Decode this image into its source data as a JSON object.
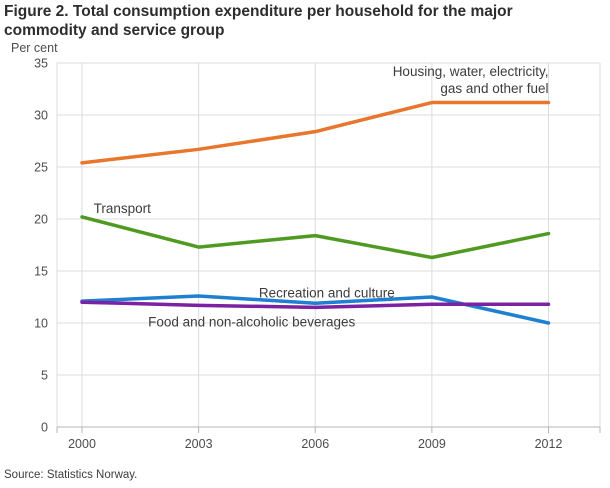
{
  "page": {
    "title": "Figure 2. Total consumption expenditure per household for the major commodity and service group",
    "source": "Source: Statistics Norway."
  },
  "chart_data": {
    "type": "line",
    "title": "Figure 2. Total consumption expenditure per household for the major commodity and service group",
    "ylabel": "Per cent",
    "xlabel": "",
    "x": [
      2000,
      2003,
      2006,
      2009,
      2012
    ],
    "xticklabels": [
      "2000",
      "2003",
      "2006",
      "2009",
      "2012"
    ],
    "ylim": [
      0,
      35
    ],
    "yticks": [
      0,
      5,
      10,
      15,
      20,
      25,
      30,
      35
    ],
    "grid": true,
    "legend_position": "inline-annotations",
    "series": [
      {
        "name": "Housing, water, electricity, gas and other fuel",
        "color": "#e8762c",
        "values": [
          25.4,
          26.7,
          28.4,
          31.2,
          31.2
        ]
      },
      {
        "name": "Transport",
        "color": "#4f9a21",
        "values": [
          20.2,
          17.3,
          18.4,
          16.3,
          18.6
        ]
      },
      {
        "name": "Recreation and culture",
        "color": "#1f7fd1",
        "values": [
          12.1,
          12.6,
          11.9,
          12.5,
          10.0
        ]
      },
      {
        "name": "Food and non-alcoholic beverages",
        "color": "#7b21a1",
        "values": [
          12.0,
          11.7,
          11.5,
          11.8,
          11.8
        ]
      }
    ],
    "annotations": [
      {
        "id": "label-housing",
        "lines": [
          "Housing, water, electricity,",
          "gas and other fuel"
        ],
        "year": 2012,
        "value": 33.75,
        "anchor": "end"
      },
      {
        "id": "label-transport",
        "lines": [
          "Transport"
        ],
        "year": 2000.3,
        "value": 20.6,
        "anchor": "start"
      },
      {
        "id": "label-recreation",
        "lines": [
          "Recreation and culture"
        ],
        "year": 2004.55,
        "value": 12.45,
        "anchor": "start"
      },
      {
        "id": "label-food",
        "lines": [
          "Food and non-alcoholic beverages"
        ],
        "year": 2001.7,
        "value": 9.65,
        "anchor": "start"
      }
    ],
    "style_colors": {
      "gridline": "#dcdcdc",
      "axis": "#b5b5b5",
      "tick_text": "#4d4d4d",
      "annotation_text": "#3c3c3c",
      "background": "#ffffff"
    }
  }
}
